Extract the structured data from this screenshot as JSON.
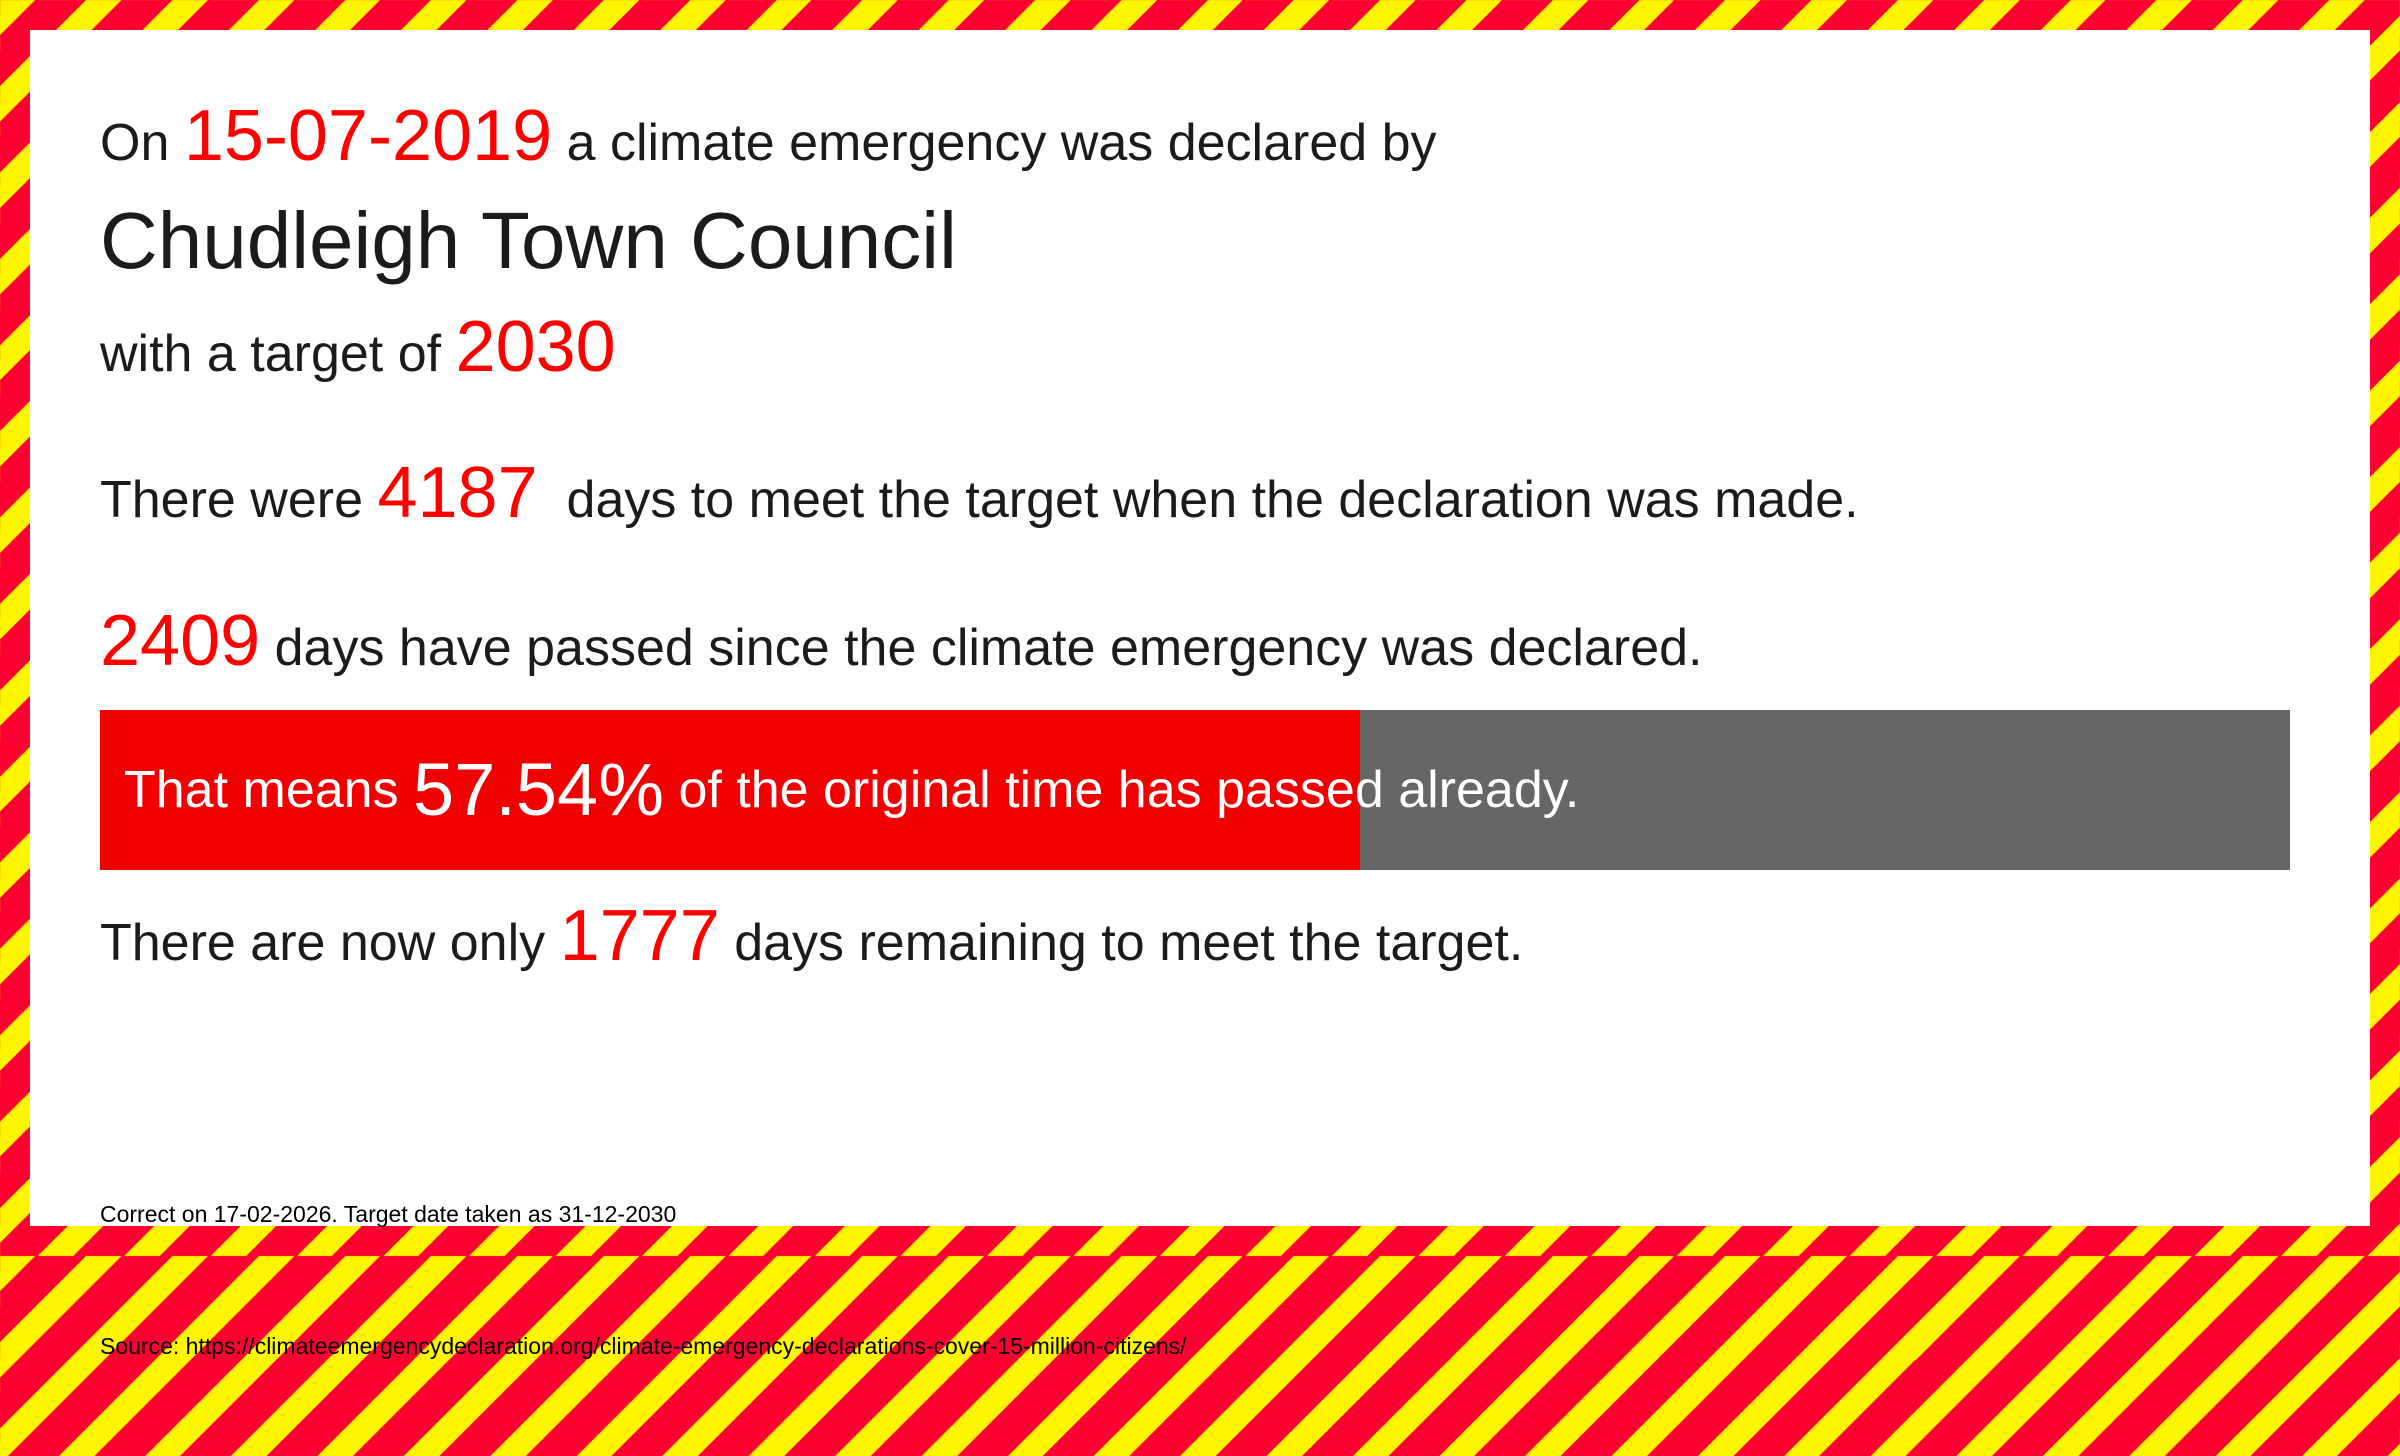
{
  "colors": {
    "stripe_red": "#FB0030",
    "stripe_yellow": "#FEF600",
    "text_red": "#FF0000",
    "bar_red": "#F10000",
    "bar_gray": "#666666",
    "text_black": "#1B1B1B"
  },
  "declaration": {
    "prefix": "On ",
    "date": "15-07-2019",
    "suffix": " a climate emergency was declared by",
    "authority": "Chudleigh Town Council",
    "target_prefix": "with a target of ",
    "target_year": "2030"
  },
  "stats": {
    "days_line_prefix": "There were ",
    "days_to_target": "4187",
    "days_line_suffix": "  days to meet the target when the declaration was made.",
    "days_passed": "2409",
    "days_passed_suffix": " days have passed since the climate emergency was declared.",
    "percent_prefix": "That means ",
    "percent_passed": "57.54%",
    "percent_suffix": " of the original time has passed already.",
    "remaining_prefix": "There are now only ",
    "days_remaining": "1777",
    "remaining_suffix": " days remaining to meet the target."
  },
  "progress": {
    "percent": 57.54
  },
  "footer": {
    "line1": "Correct on 17-02-2026. Target date taken as 31-12-2030",
    "line2": "Source: https://climateemergencydeclaration.org/climate-emergency-declarations-cover-15-million-citizens/"
  }
}
